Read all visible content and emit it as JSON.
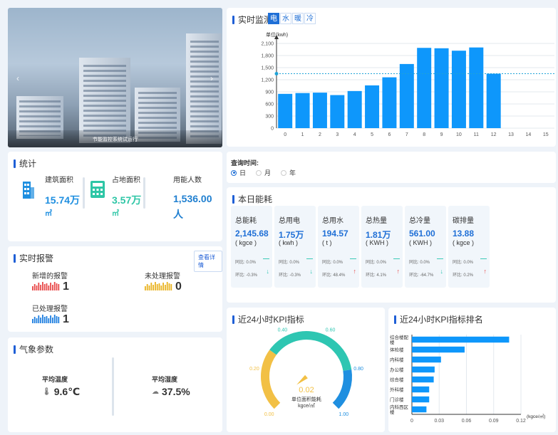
{
  "photo": {
    "caption": "节能监控系统试运行"
  },
  "realtime": {
    "title": "实时监测",
    "tabs": [
      "电",
      "水",
      "暖",
      "冷"
    ],
    "active_tab": 0,
    "colors": {
      "bar": "#0e97fb",
      "avg_line": "#1fa3d8"
    }
  },
  "stats": {
    "title": "统计",
    "items": [
      {
        "label": "建筑面积",
        "value": "15.74万",
        "unit": "㎡",
        "icon": "building-icon",
        "color": "#1f8fe0"
      },
      {
        "label": "占地面积",
        "value": "3.57万",
        "unit": "㎡",
        "icon": "calculator-icon",
        "color": "#2ec6a6"
      },
      {
        "label": "用能人数",
        "value": "1,536.00",
        "unit": "人",
        "icon": "",
        "color": "#1f7fd0"
      }
    ]
  },
  "alarm": {
    "title": "实时报警",
    "detail_button": "查看详情",
    "items": [
      {
        "label": "新增的报警",
        "count": "1",
        "color": "#e84a4a"
      },
      {
        "label": "未处理报警",
        "count": "0",
        "color": "#e9b321"
      },
      {
        "label": "已处理报警",
        "count": "1",
        "color": "#1f7fe0"
      }
    ]
  },
  "weather": {
    "title": "气象参数",
    "temp_label": "平均温度",
    "temp_value": "9.6℃",
    "humidity_label": "平均湿度",
    "humidity_value": "37.5%"
  },
  "query": {
    "title": "查询时间:",
    "options": [
      "日",
      "月",
      "年"
    ],
    "selected": 0
  },
  "today": {
    "title": "本日能耗",
    "labels": {
      "mom": "环比:",
      "yoy": "同比:"
    },
    "cards": [
      {
        "name": "总能耗",
        "value": "2,145.68",
        "unit": "( kgce )",
        "yoy": "0.0%",
        "mom": "-0.3%",
        "mom_dir": "down"
      },
      {
        "name": "总用电",
        "value": "1.75万",
        "unit": "( kwh )",
        "yoy": "0.0%",
        "mom": "-0.3%",
        "mom_dir": "down"
      },
      {
        "name": "总用水",
        "value": "194.57",
        "unit": "( t )",
        "yoy": "0.0%",
        "mom": "48.4%",
        "mom_dir": "up"
      },
      {
        "name": "总热量",
        "value": "1.81万",
        "unit": "( KWH )",
        "yoy": "0.0%",
        "mom": "4.1%",
        "mom_dir": "up"
      },
      {
        "name": "总冷量",
        "value": "561.00",
        "unit": "( KWH )",
        "yoy": "0.0%",
        "mom": "-64.7%",
        "mom_dir": "down"
      },
      {
        "name": "碳排量",
        "value": "13.88",
        "unit": "( kgce )",
        "yoy": "0.0%",
        "mom": "0.2%",
        "mom_dir": "up"
      }
    ]
  },
  "kpi": {
    "title": "近24小时KPI指标",
    "value": "0.02",
    "label": "单位面积能耗",
    "unit": "kgce/㎡"
  },
  "rank": {
    "title": "近24小时KPI指标排名"
  },
  "chart_data": [
    {
      "type": "bar",
      "ylabel": "单位(kwh)",
      "categories": [
        "0",
        "1",
        "2",
        "3",
        "4",
        "5",
        "6",
        "7",
        "8",
        "9",
        "10",
        "11",
        "12",
        "13",
        "14",
        "15"
      ],
      "values": [
        850,
        870,
        880,
        820,
        920,
        1060,
        1260,
        1590,
        1990,
        1980,
        1920,
        2000,
        1350,
        null,
        null,
        null
      ],
      "yticks": [
        "0",
        "300",
        "600",
        "900",
        "1,200",
        "1,500",
        "1,800",
        "2,100"
      ],
      "ylim": [
        0,
        2100
      ],
      "avg_line": 1350,
      "grid": true
    },
    {
      "type": "gauge",
      "value": 0.02,
      "range": [
        0,
        1
      ],
      "tick_labels": [
        "0.00",
        "0.20",
        "0.40",
        "0.60",
        "0.80",
        "1.00"
      ],
      "colors": [
        "#f2c045",
        "#2ec6b2",
        "#1f8fe0"
      ]
    },
    {
      "type": "bar",
      "orientation": "horizontal",
      "categories": [
        "综合楼配楼",
        "体检楼",
        "内科楼",
        "办公楼",
        "综合楼",
        "外科楼",
        "门诊楼",
        "内科西区楼"
      ],
      "values": [
        0.107,
        0.058,
        0.032,
        0.025,
        0.024,
        0.019,
        0.019,
        0.016
      ],
      "xticks": [
        "0",
        "0.03",
        "0.06",
        "0.09",
        "0.12"
      ],
      "xlim": [
        0,
        0.12
      ],
      "xlabel": "(kgce/㎡)",
      "color": "#0e97fb"
    }
  ]
}
